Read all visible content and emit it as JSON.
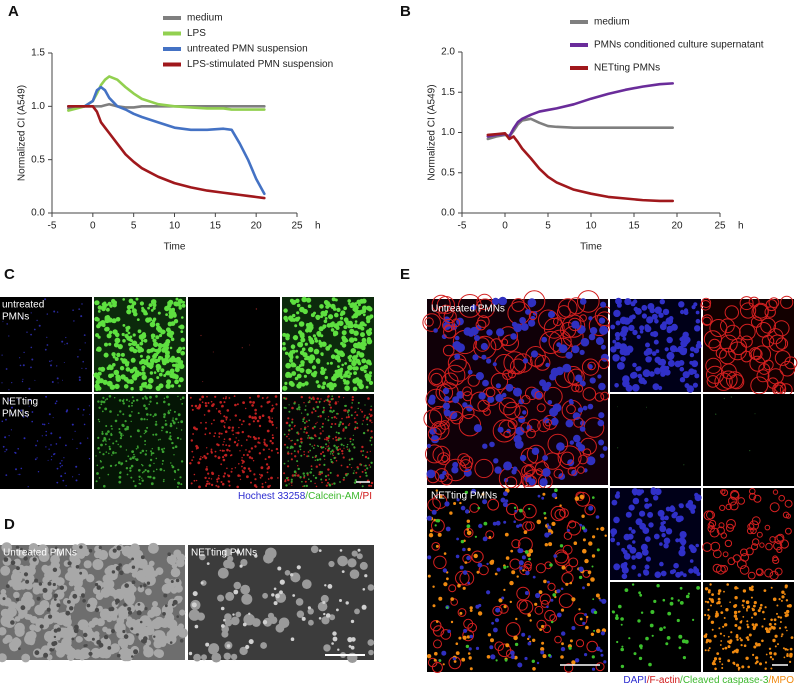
{
  "chart_data": [
    {
      "type": "line",
      "xlabel": "Time",
      "ylabel": "Normalized CI (A549)",
      "xunit": "h",
      "xlim": [
        -5,
        25
      ],
      "xticks": [
        -5,
        0,
        5,
        10,
        15,
        20,
        25
      ],
      "ylim": [
        0,
        1.5
      ],
      "yticks": [
        {
          "value": 0,
          "label": "0.0"
        },
        0.5,
        {
          "value": 1,
          "label": "1.0"
        },
        1.5
      ],
      "x": [
        -3,
        -2,
        -1,
        0,
        0.5,
        1,
        1.5,
        2,
        3,
        4,
        5,
        6,
        8,
        10,
        12,
        14,
        16,
        17,
        18,
        19,
        20,
        21
      ],
      "series": [
        {
          "name": "medium",
          "color": "#7f7f7f",
          "values": [
            0.98,
            0.99,
            1.0,
            1.0,
            1.0,
            1.0,
            1.01,
            1.02,
            1.0,
            0.99,
            0.99,
            1.0,
            1.0,
            1.0,
            1.0,
            1.0,
            1.0,
            1.0,
            1.0,
            1.0,
            1.0,
            1.0
          ]
        },
        {
          "name": "LPS",
          "color": "#92d050",
          "values": [
            0.96,
            0.98,
            1.0,
            1.05,
            1.12,
            1.2,
            1.25,
            1.28,
            1.25,
            1.18,
            1.12,
            1.07,
            1.02,
            1.0,
            0.99,
            0.98,
            0.98,
            0.97,
            0.97,
            0.97,
            0.97,
            0.97
          ]
        },
        {
          "name": "untreated PMN suspension",
          "color": "#4472c4",
          "values": [
            1.0,
            1.0,
            1.0,
            1.05,
            1.15,
            1.18,
            1.15,
            1.08,
            1.0,
            0.97,
            0.93,
            0.9,
            0.85,
            0.8,
            0.78,
            0.78,
            0.79,
            0.78,
            0.65,
            0.5,
            0.32,
            0.18
          ]
        },
        {
          "name": "LPS-stimulated PMN suspension",
          "color": "#a0181c",
          "values": [
            1.0,
            1.0,
            1.0,
            1.0,
            0.95,
            0.85,
            0.8,
            0.75,
            0.65,
            0.55,
            0.48,
            0.42,
            0.34,
            0.28,
            0.24,
            0.21,
            0.19,
            0.18,
            0.17,
            0.16,
            0.15,
            0.14
          ]
        }
      ]
    },
    {
      "type": "line",
      "xlabel": "Time",
      "ylabel": "Normalized CI (A549)",
      "xunit": "h",
      "xlim": [
        -5,
        25
      ],
      "xticks": [
        -5,
        0,
        5,
        10,
        15,
        20,
        25
      ],
      "ylim": [
        0,
        2
      ],
      "yticks": [
        {
          "value": 0,
          "label": "0.0"
        },
        0.5,
        {
          "value": 1,
          "label": "1.0"
        },
        1.5,
        {
          "value": 2,
          "label": "2.0"
        }
      ],
      "x": [
        -2,
        -1,
        0,
        0.5,
        1,
        1.5,
        2,
        3,
        4,
        5,
        6,
        8,
        10,
        12,
        14,
        16,
        18,
        19.5
      ],
      "series": [
        {
          "name": "medium",
          "color": "#7f7f7f",
          "values": [
            0.92,
            0.95,
            0.97,
            0.95,
            1.02,
            1.1,
            1.15,
            1.17,
            1.12,
            1.08,
            1.07,
            1.06,
            1.06,
            1.06,
            1.06,
            1.06,
            1.06,
            1.06
          ]
        },
        {
          "name": "PMNs conditioned culture supernatant",
          "color": "#6a2c9a",
          "values": [
            0.95,
            0.97,
            0.98,
            0.95,
            1.05,
            1.13,
            1.17,
            1.22,
            1.26,
            1.28,
            1.3,
            1.35,
            1.42,
            1.48,
            1.53,
            1.57,
            1.6,
            1.61
          ]
        },
        {
          "name": "NETting PMNs",
          "color": "#a0181c",
          "values": [
            0.97,
            0.98,
            0.99,
            0.92,
            0.95,
            0.88,
            0.8,
            0.68,
            0.55,
            0.45,
            0.38,
            0.29,
            0.24,
            0.2,
            0.18,
            0.16,
            0.15,
            0.15
          ]
        }
      ]
    }
  ],
  "figure": {
    "letters": [
      "A",
      "B",
      "C",
      "D",
      "E"
    ],
    "panel_c": {
      "row_labels": [
        [
          "untreated",
          "PMNs"
        ],
        [
          "NETting",
          "PMNs"
        ]
      ],
      "caption": [
        {
          "text": "Hochest 33258",
          "color": "#2b2bd0"
        },
        {
          "text": "/Calcein-AM",
          "color": "#3cb82c"
        },
        {
          "text": "/PI",
          "color": "#d01818"
        }
      ]
    },
    "panel_d": {
      "labels": [
        "Untreated PMNs",
        "NETting PMNs"
      ]
    },
    "panel_e": {
      "labels": [
        "Untreated PMNs",
        "NETting PMNs"
      ],
      "caption": [
        {
          "text": "DAPI",
          "color": "#2b2bd0"
        },
        {
          "text": "/F-actin",
          "color": "#d01818"
        },
        {
          "text": "/Cleaved caspase-3",
          "color": "#3cb82c"
        },
        {
          "text": "/MPO",
          "color": "#f08a10"
        }
      ]
    }
  }
}
